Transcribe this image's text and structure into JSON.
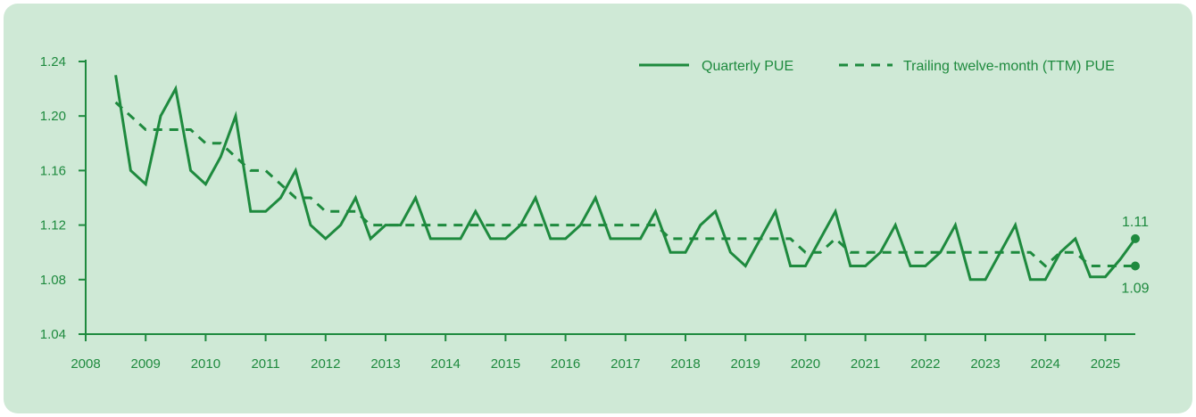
{
  "chart_data": {
    "type": "line",
    "xlabel": "",
    "ylabel": "",
    "x_ticks": [
      "2008",
      "2009",
      "2010",
      "2011",
      "2012",
      "2013",
      "2014",
      "2015",
      "2016",
      "2017",
      "2018",
      "2019",
      "2020",
      "2021",
      "2022",
      "2023",
      "2024",
      "2025"
    ],
    "y_ticks": [
      "1.04",
      "1.08",
      "1.12",
      "1.16",
      "1.20",
      "1.24"
    ],
    "xlim": [
      2008,
      2025.5
    ],
    "ylim": [
      1.04,
      1.24
    ],
    "grid": false,
    "legend_position": "top-right",
    "colors": {
      "line": "#1e8a3e",
      "axis": "#1e8a3e",
      "text": "#1e8a3e",
      "background": "#cfe9d6"
    },
    "series": [
      {
        "name": "Quarterly PUE",
        "style": "solid",
        "points": [
          [
            2008.5,
            1.23
          ],
          [
            2008.75,
            1.16
          ],
          [
            2009.0,
            1.15
          ],
          [
            2009.25,
            1.2
          ],
          [
            2009.5,
            1.22
          ],
          [
            2009.75,
            1.16
          ],
          [
            2010.0,
            1.15
          ],
          [
            2010.25,
            1.17
          ],
          [
            2010.5,
            1.2
          ],
          [
            2010.75,
            1.13
          ],
          [
            2011.0,
            1.13
          ],
          [
            2011.25,
            1.14
          ],
          [
            2011.5,
            1.16
          ],
          [
            2011.75,
            1.12
          ],
          [
            2012.0,
            1.11
          ],
          [
            2012.25,
            1.12
          ],
          [
            2012.5,
            1.14
          ],
          [
            2012.75,
            1.11
          ],
          [
            2013.0,
            1.12
          ],
          [
            2013.25,
            1.12
          ],
          [
            2013.5,
            1.14
          ],
          [
            2013.75,
            1.11
          ],
          [
            2014.0,
            1.11
          ],
          [
            2014.25,
            1.11
          ],
          [
            2014.5,
            1.13
          ],
          [
            2014.75,
            1.11
          ],
          [
            2015.0,
            1.11
          ],
          [
            2015.25,
            1.12
          ],
          [
            2015.5,
            1.14
          ],
          [
            2015.75,
            1.11
          ],
          [
            2016.0,
            1.11
          ],
          [
            2016.25,
            1.12
          ],
          [
            2016.5,
            1.14
          ],
          [
            2016.75,
            1.11
          ],
          [
            2017.0,
            1.11
          ],
          [
            2017.25,
            1.11
          ],
          [
            2017.5,
            1.13
          ],
          [
            2017.75,
            1.1
          ],
          [
            2018.0,
            1.1
          ],
          [
            2018.25,
            1.12
          ],
          [
            2018.5,
            1.13
          ],
          [
            2018.75,
            1.1
          ],
          [
            2019.0,
            1.09
          ],
          [
            2019.25,
            1.11
          ],
          [
            2019.5,
            1.13
          ],
          [
            2019.75,
            1.09
          ],
          [
            2020.0,
            1.09
          ],
          [
            2020.25,
            1.11
          ],
          [
            2020.5,
            1.13
          ],
          [
            2020.75,
            1.09
          ],
          [
            2021.0,
            1.09
          ],
          [
            2021.25,
            1.1
          ],
          [
            2021.5,
            1.12
          ],
          [
            2021.75,
            1.09
          ],
          [
            2022.0,
            1.09
          ],
          [
            2022.25,
            1.1
          ],
          [
            2022.5,
            1.12
          ],
          [
            2022.75,
            1.08
          ],
          [
            2023.0,
            1.08
          ],
          [
            2023.25,
            1.1
          ],
          [
            2023.5,
            1.12
          ],
          [
            2023.75,
            1.08
          ],
          [
            2024.0,
            1.08
          ],
          [
            2024.25,
            1.1
          ],
          [
            2024.5,
            1.11
          ],
          [
            2024.75,
            1.082
          ],
          [
            2025.0,
            1.082
          ],
          [
            2025.25,
            1.095
          ],
          [
            2025.5,
            1.11
          ]
        ],
        "end_label": "1.11"
      },
      {
        "name": "Trailing twelve-month (TTM) PUE",
        "style": "dashed",
        "points": [
          [
            2008.5,
            1.21
          ],
          [
            2008.75,
            1.2
          ],
          [
            2009.0,
            1.19
          ],
          [
            2009.25,
            1.19
          ],
          [
            2009.5,
            1.19
          ],
          [
            2009.75,
            1.19
          ],
          [
            2010.0,
            1.18
          ],
          [
            2010.25,
            1.18
          ],
          [
            2010.5,
            1.17
          ],
          [
            2010.75,
            1.16
          ],
          [
            2011.0,
            1.16
          ],
          [
            2011.25,
            1.15
          ],
          [
            2011.5,
            1.14
          ],
          [
            2011.75,
            1.14
          ],
          [
            2012.0,
            1.13
          ],
          [
            2012.25,
            1.13
          ],
          [
            2012.5,
            1.13
          ],
          [
            2012.75,
            1.12
          ],
          [
            2013.0,
            1.12
          ],
          [
            2013.25,
            1.12
          ],
          [
            2014.0,
            1.12
          ],
          [
            2015.0,
            1.12
          ],
          [
            2016.0,
            1.12
          ],
          [
            2017.0,
            1.12
          ],
          [
            2017.5,
            1.12
          ],
          [
            2017.75,
            1.11
          ],
          [
            2018.0,
            1.11
          ],
          [
            2019.0,
            1.11
          ],
          [
            2019.75,
            1.11
          ],
          [
            2020.0,
            1.1
          ],
          [
            2020.25,
            1.1
          ],
          [
            2020.5,
            1.11
          ],
          [
            2020.75,
            1.1
          ],
          [
            2021.0,
            1.1
          ],
          [
            2022.0,
            1.1
          ],
          [
            2023.0,
            1.1
          ],
          [
            2023.75,
            1.1
          ],
          [
            2024.0,
            1.09
          ],
          [
            2024.25,
            1.1
          ],
          [
            2024.5,
            1.1
          ],
          [
            2024.75,
            1.09
          ],
          [
            2025.0,
            1.09
          ],
          [
            2025.25,
            1.09
          ],
          [
            2025.5,
            1.09
          ]
        ],
        "end_label": "1.09"
      }
    ]
  }
}
